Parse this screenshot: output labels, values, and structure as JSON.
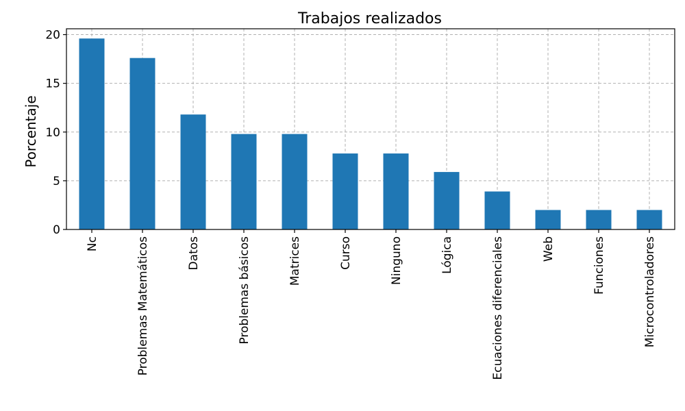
{
  "chart_data": {
    "type": "bar",
    "title": "Trabajos realizados",
    "xlabel": "",
    "ylabel": "Porcentaje",
    "categories": [
      "Nc",
      "Problemas Matemáticos",
      "Datos",
      "Problemas básicos",
      "Matrices",
      "Curso",
      "Ninguno",
      "Lógica",
      "Ecuaciones diferenciales",
      "Web",
      "Funciones",
      "Microcontroladores"
    ],
    "values": [
      19.6,
      17.6,
      11.8,
      9.8,
      9.8,
      7.8,
      7.8,
      5.9,
      3.9,
      2.0,
      2.0,
      2.0
    ],
    "ylim": [
      0,
      20.6
    ],
    "yticks": [
      0,
      5,
      10,
      15,
      20
    ],
    "grid": true,
    "bar_color": "#1f77b4"
  }
}
